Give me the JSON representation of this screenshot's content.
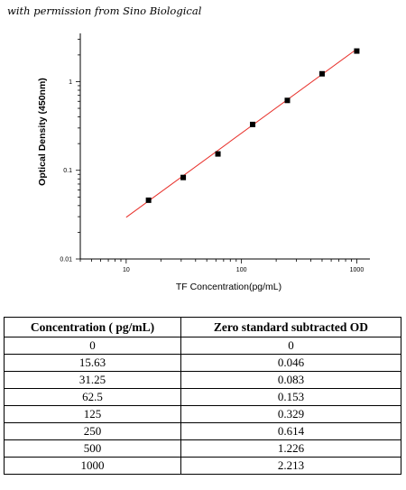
{
  "credit": "with permission from Sino Biological",
  "chart_data": {
    "type": "scatter",
    "title": "",
    "xlabel": "TF  Concentration(pg/mL)",
    "ylabel": "Optical Density (450nm)",
    "x_scale": "log",
    "y_scale": "log",
    "xlim": [
      4,
      1300
    ],
    "ylim": [
      0.01,
      3.5
    ],
    "x_ticks": [
      10,
      100,
      1000
    ],
    "x_tick_labels": [
      "10",
      "100",
      "1000"
    ],
    "y_ticks": [
      0.01,
      0.1,
      1
    ],
    "y_tick_labels": [
      "0.01",
      "0.1",
      "1"
    ],
    "grid": false,
    "series": [
      {
        "x": [
          15.63,
          31.25,
          62.5,
          125,
          250,
          500,
          1000
        ],
        "y": [
          0.046,
          0.083,
          0.153,
          0.329,
          0.614,
          1.226,
          2.213
        ],
        "marker": "square",
        "color": "#000000"
      }
    ],
    "fit_line": {
      "x": [
        10,
        1000
      ],
      "y": [
        0.0295,
        2.33
      ],
      "color": "#e8302a"
    }
  },
  "table": {
    "headers": [
      "Concentration ( pg/mL)",
      "Zero standard subtracted OD"
    ],
    "rows": [
      [
        "0",
        "0"
      ],
      [
        "15.63",
        "0.046"
      ],
      [
        "31.25",
        "0.083"
      ],
      [
        "62.5",
        "0.153"
      ],
      [
        "125",
        "0.329"
      ],
      [
        "250",
        "0.614"
      ],
      [
        "500",
        "1.226"
      ],
      [
        "1000",
        "2.213"
      ]
    ]
  }
}
